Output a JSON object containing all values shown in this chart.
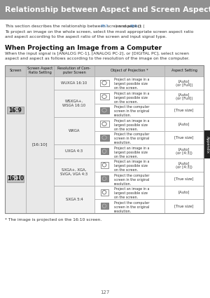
{
  "title": "Relationship between Aspect and Screen Aspect",
  "title_bg": "#909090",
  "title_color": "#ffffff",
  "body_bg": "#ffffff",
  "intro_line1": "This section describes the relationship between screen aspect (",
  "intro_p57": "P57",
  "intro_mid": ") and aspect (",
  "intro_p61": "P61",
  "intro_end": ").",
  "intro_line2": "To project an image on the whole screen, select the most appropriate screen aspect ratio",
  "intro_line3": "and aspect according to the aspect ratio of the screen and input signal type.",
  "section_heading": "When Projecting an Image from a Computer",
  "section_body1": "When the input signal is [ANALOG PC-1], [ANALOG PC-2], or [DIGITAL PC], select screen",
  "section_body2": "aspect and aspect as follows according to the resolution of the image on the computer.",
  "col_headers": [
    "Screen",
    "Screen Aspect\nRatio Setting",
    "Resolution of Com-\nputer Screen",
    "Object of Projection *",
    "Aspect Setting"
  ],
  "screen_labels": [
    "16:9",
    "16:10"
  ],
  "screen_aspect": "[16:10]",
  "table_rows": [
    {
      "resolution": "WUXGA 16:10",
      "entries": [
        {
          "icon": "wide_light",
          "text": "Project an image in a\nlargest possible size\non the screen.",
          "aspect": "[Auto]\n(or [Full])"
        }
      ]
    },
    {
      "resolution": "WSXGA+,\nWSGA 16:10",
      "entries": [
        {
          "icon": "wide_light",
          "text": "Project an image in a\nlargest possible size\non the screen.",
          "aspect": "[Auto]\n(or [Full])"
        },
        {
          "icon": "wide_dark",
          "text": "Project the computer\nscreen in the original\nresolution.",
          "aspect": "[True size]"
        }
      ]
    },
    {
      "resolution": "WXGA",
      "entries": [
        {
          "icon": "wide_light",
          "text": "Project an image in a\nlargest possible size\non the screen.",
          "aspect": "[Auto]"
        },
        {
          "icon": "wide_dark",
          "text": "Project the computer\nscreen in the original\nresolution.",
          "aspect": "[True size]"
        }
      ]
    },
    {
      "resolution": "UXGA 4:3",
      "entries": [
        {
          "icon": "sq_dark",
          "text": "Project an image in a\nlargest possible size\non the screen.",
          "aspect": "[Auto]\n(or [4:3])"
        }
      ]
    },
    {
      "resolution": "SXGA+, XGA,\nSVGA, VGA 4:3",
      "entries": [
        {
          "icon": "sq_light",
          "text": "Project an image in a\nlargest possible size\non the screen.",
          "aspect": "[Auto]\n(or [4:3])"
        },
        {
          "icon": "sq_dark",
          "text": "Project the computer\nscreen in the original\nresolution.",
          "aspect": "[True size]"
        }
      ]
    },
    {
      "resolution": "SXGA 5:4",
      "entries": [
        {
          "icon": "sq_light",
          "text": "Project an image in a\nlargest possible size\non the screen.",
          "aspect": "[Auto]"
        },
        {
          "icon": "sq_dark",
          "text": "Project the computer\nscreen in the original\nresolution.",
          "aspect": "[True size]"
        }
      ]
    }
  ],
  "footnote": "* The image is projected on the 16:10 screen.",
  "page_number": "127",
  "appendix_label": "Appendix",
  "tab_color": "#222222",
  "link_color": "#4a90d9",
  "grid_color": "#aaaaaa",
  "header_bg": "#c8c8c8",
  "screen_col_bg": "#e8e8e8",
  "res_col_bg": "#f2f2f2",
  "row_bg": "#ffffff"
}
